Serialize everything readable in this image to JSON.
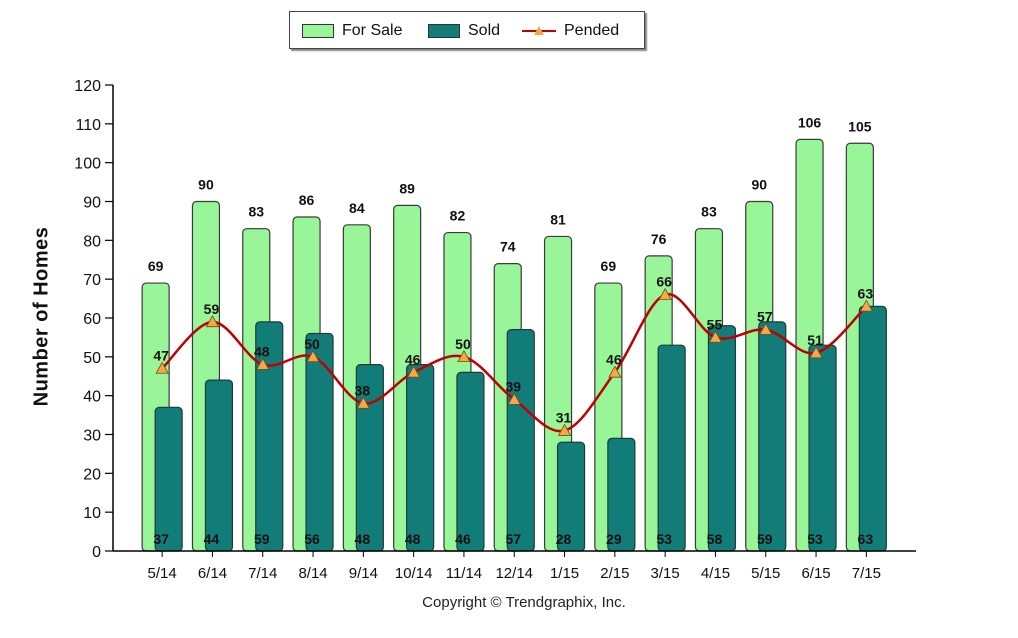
{
  "legend": {
    "for_sale": "For Sale",
    "sold": "Sold",
    "pended": "Pended"
  },
  "footer": {
    "copyright": "Copyright © Trendgraphix, Inc."
  },
  "colors": {
    "for_sale": "#98f598",
    "sold": "#127c78",
    "pended_line": "#c00000",
    "pended_marker": "#f4a84a"
  },
  "chart_data": {
    "type": "bar",
    "ylabel": "Number of Homes",
    "ylim": [
      0,
      120
    ],
    "yticks": [
      0,
      10,
      20,
      30,
      40,
      50,
      60,
      70,
      80,
      90,
      100,
      110,
      120
    ],
    "categories": [
      "5/14",
      "6/14",
      "7/14",
      "8/14",
      "9/14",
      "10/14",
      "11/14",
      "12/14",
      "1/15",
      "2/15",
      "3/15",
      "4/15",
      "5/15",
      "6/15",
      "7/15"
    ],
    "series": [
      {
        "name": "For Sale",
        "kind": "bar",
        "values": [
          69,
          90,
          83,
          86,
          84,
          89,
          82,
          74,
          81,
          69,
          76,
          83,
          90,
          106,
          105
        ]
      },
      {
        "name": "Sold",
        "kind": "bar",
        "values": [
          37,
          44,
          59,
          56,
          48,
          48,
          46,
          57,
          28,
          29,
          53,
          58,
          59,
          53,
          63
        ]
      },
      {
        "name": "Pended",
        "kind": "line",
        "values": [
          47,
          59,
          48,
          50,
          38,
          46,
          50,
          39,
          31,
          46,
          66,
          55,
          57,
          51,
          63
        ]
      }
    ],
    "legend_position": "top-center",
    "grid": false
  }
}
